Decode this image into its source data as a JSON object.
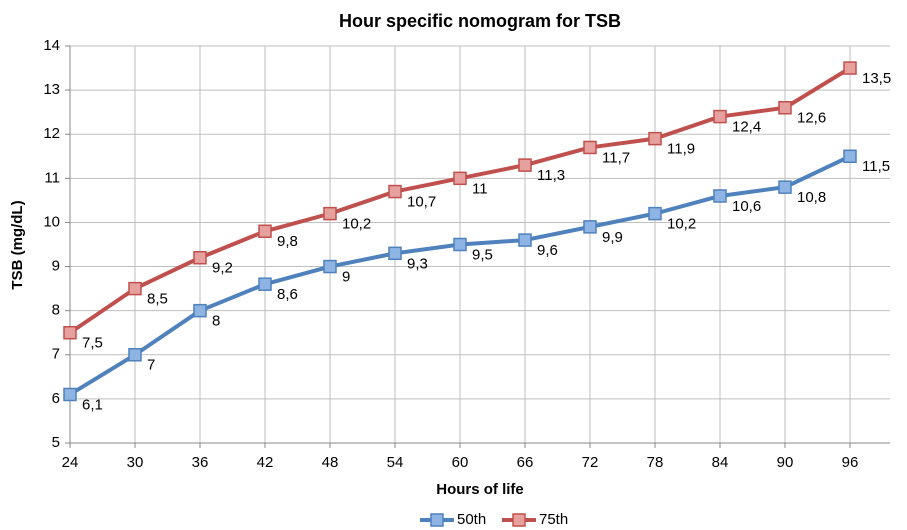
{
  "chart_data": {
    "type": "line",
    "title": "Hour specific nomogram for TSB",
    "x_label": "Hours of life",
    "y_label": "TSB (mg/dL)",
    "categories": [
      "24",
      "30",
      "36",
      "42",
      "48",
      "54",
      "60",
      "66",
      "72",
      "78",
      "84",
      "90",
      "96"
    ],
    "series": [
      {
        "name": "50th",
        "color": "#4f81bd",
        "marker_color": "#8eb4e3",
        "values": [
          6.1,
          7,
          8,
          8.6,
          9,
          9.3,
          9.5,
          9.6,
          9.9,
          10.2,
          10.6,
          10.8,
          11.5
        ],
        "value_labels": [
          "6,1",
          "7",
          "8",
          "8,6",
          "9",
          "9,3",
          "9,5",
          "9,6",
          "9,9",
          "10,2",
          "10,6",
          "10,8",
          "11,5"
        ]
      },
      {
        "name": "75th",
        "color": "#c0504d",
        "marker_color": "#e6a09e",
        "values": [
          7.5,
          8.5,
          9.2,
          9.8,
          10.2,
          10.7,
          11,
          11.3,
          11.7,
          11.9,
          12.4,
          12.6,
          13.5
        ],
        "value_labels": [
          "7,5",
          "8,5",
          "9,2",
          "9,8",
          "10,2",
          "10,7",
          "11",
          "11,3",
          "11,7",
          "11,9",
          "12,4",
          "12,6",
          "13,5"
        ]
      }
    ],
    "ylim": [
      5,
      14
    ],
    "yticks": [
      5,
      6,
      7,
      8,
      9,
      10,
      11,
      12,
      13,
      14
    ],
    "grid": true,
    "legend": "bottom"
  }
}
